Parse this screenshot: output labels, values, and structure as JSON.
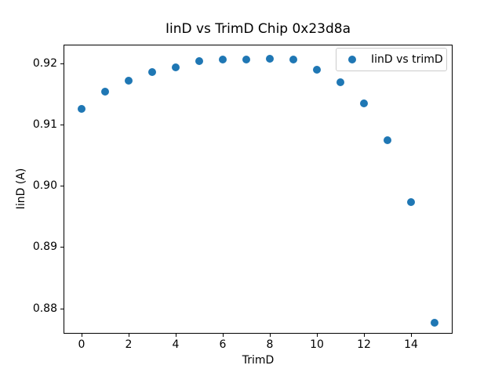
{
  "chart_data": {
    "type": "scatter",
    "title": "IinD vs TrimD Chip 0x23d8a",
    "xlabel": "TrimD",
    "ylabel": "IinD (A)",
    "series": [
      {
        "name": "IinD vs trimD",
        "color": "#1f77b4",
        "x": [
          0,
          1,
          2,
          3,
          4,
          5,
          6,
          7,
          8,
          9,
          10,
          11,
          12,
          13,
          14,
          15
        ],
        "y": [
          0.9125,
          0.9154,
          0.9172,
          0.9185,
          0.9193,
          0.9203,
          0.9206,
          0.9206,
          0.9207,
          0.9206,
          0.919,
          0.9169,
          0.9135,
          0.9074,
          0.8973,
          0.8777
        ]
      }
    ],
    "xlim": [
      -0.75,
      15.75
    ],
    "ylim": [
      0.876,
      0.9229
    ],
    "xticks": [
      0,
      2,
      4,
      6,
      8,
      10,
      12,
      14
    ],
    "yticks": [
      0.88,
      0.89,
      0.9,
      0.91,
      0.92
    ],
    "grid": false,
    "legend_position": "upper right",
    "background": "#ffffff",
    "text_color": "#000000",
    "legend_border_color": "#cccccc"
  }
}
